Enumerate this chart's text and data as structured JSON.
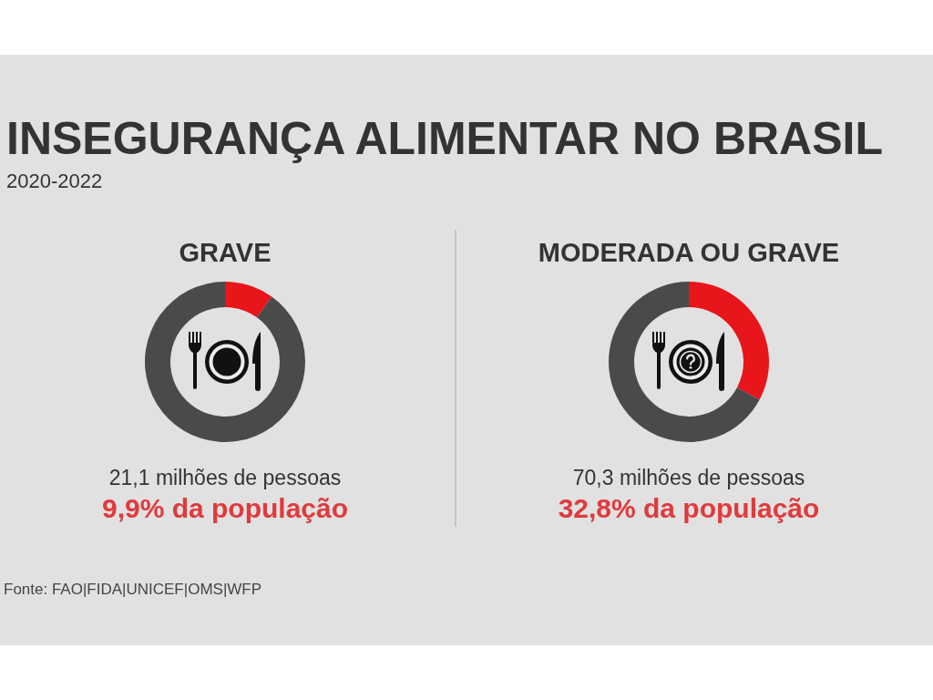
{
  "chart_data": [
    {
      "type": "other",
      "title": "INSEGURANÇA ALIMENTAR NO BRASIL",
      "subtitle": "2020-2022",
      "annotations": [
        "Fonte: FAO|FIDA|UNICEF|OMS|WFP"
      ]
    },
    {
      "type": "donut",
      "title": "GRAVE",
      "categories": [
        null,
        null
      ],
      "values": [
        9.9,
        90.1
      ],
      "colors": [
        "#e8151b",
        "#4a4a4a"
      ],
      "annotations": [
        "21,1 milhões de pessoas",
        "9,9% da população"
      ]
    },
    {
      "type": "donut",
      "title": "MODERADA OU GRAVE",
      "categories": [
        null,
        null
      ],
      "values": [
        32.8,
        67.2
      ],
      "colors": [
        "#e8151b",
        "#4a4a4a"
      ],
      "annotations": [
        "70,3 milhões de pessoas",
        "32,8% da população"
      ]
    }
  ]
}
